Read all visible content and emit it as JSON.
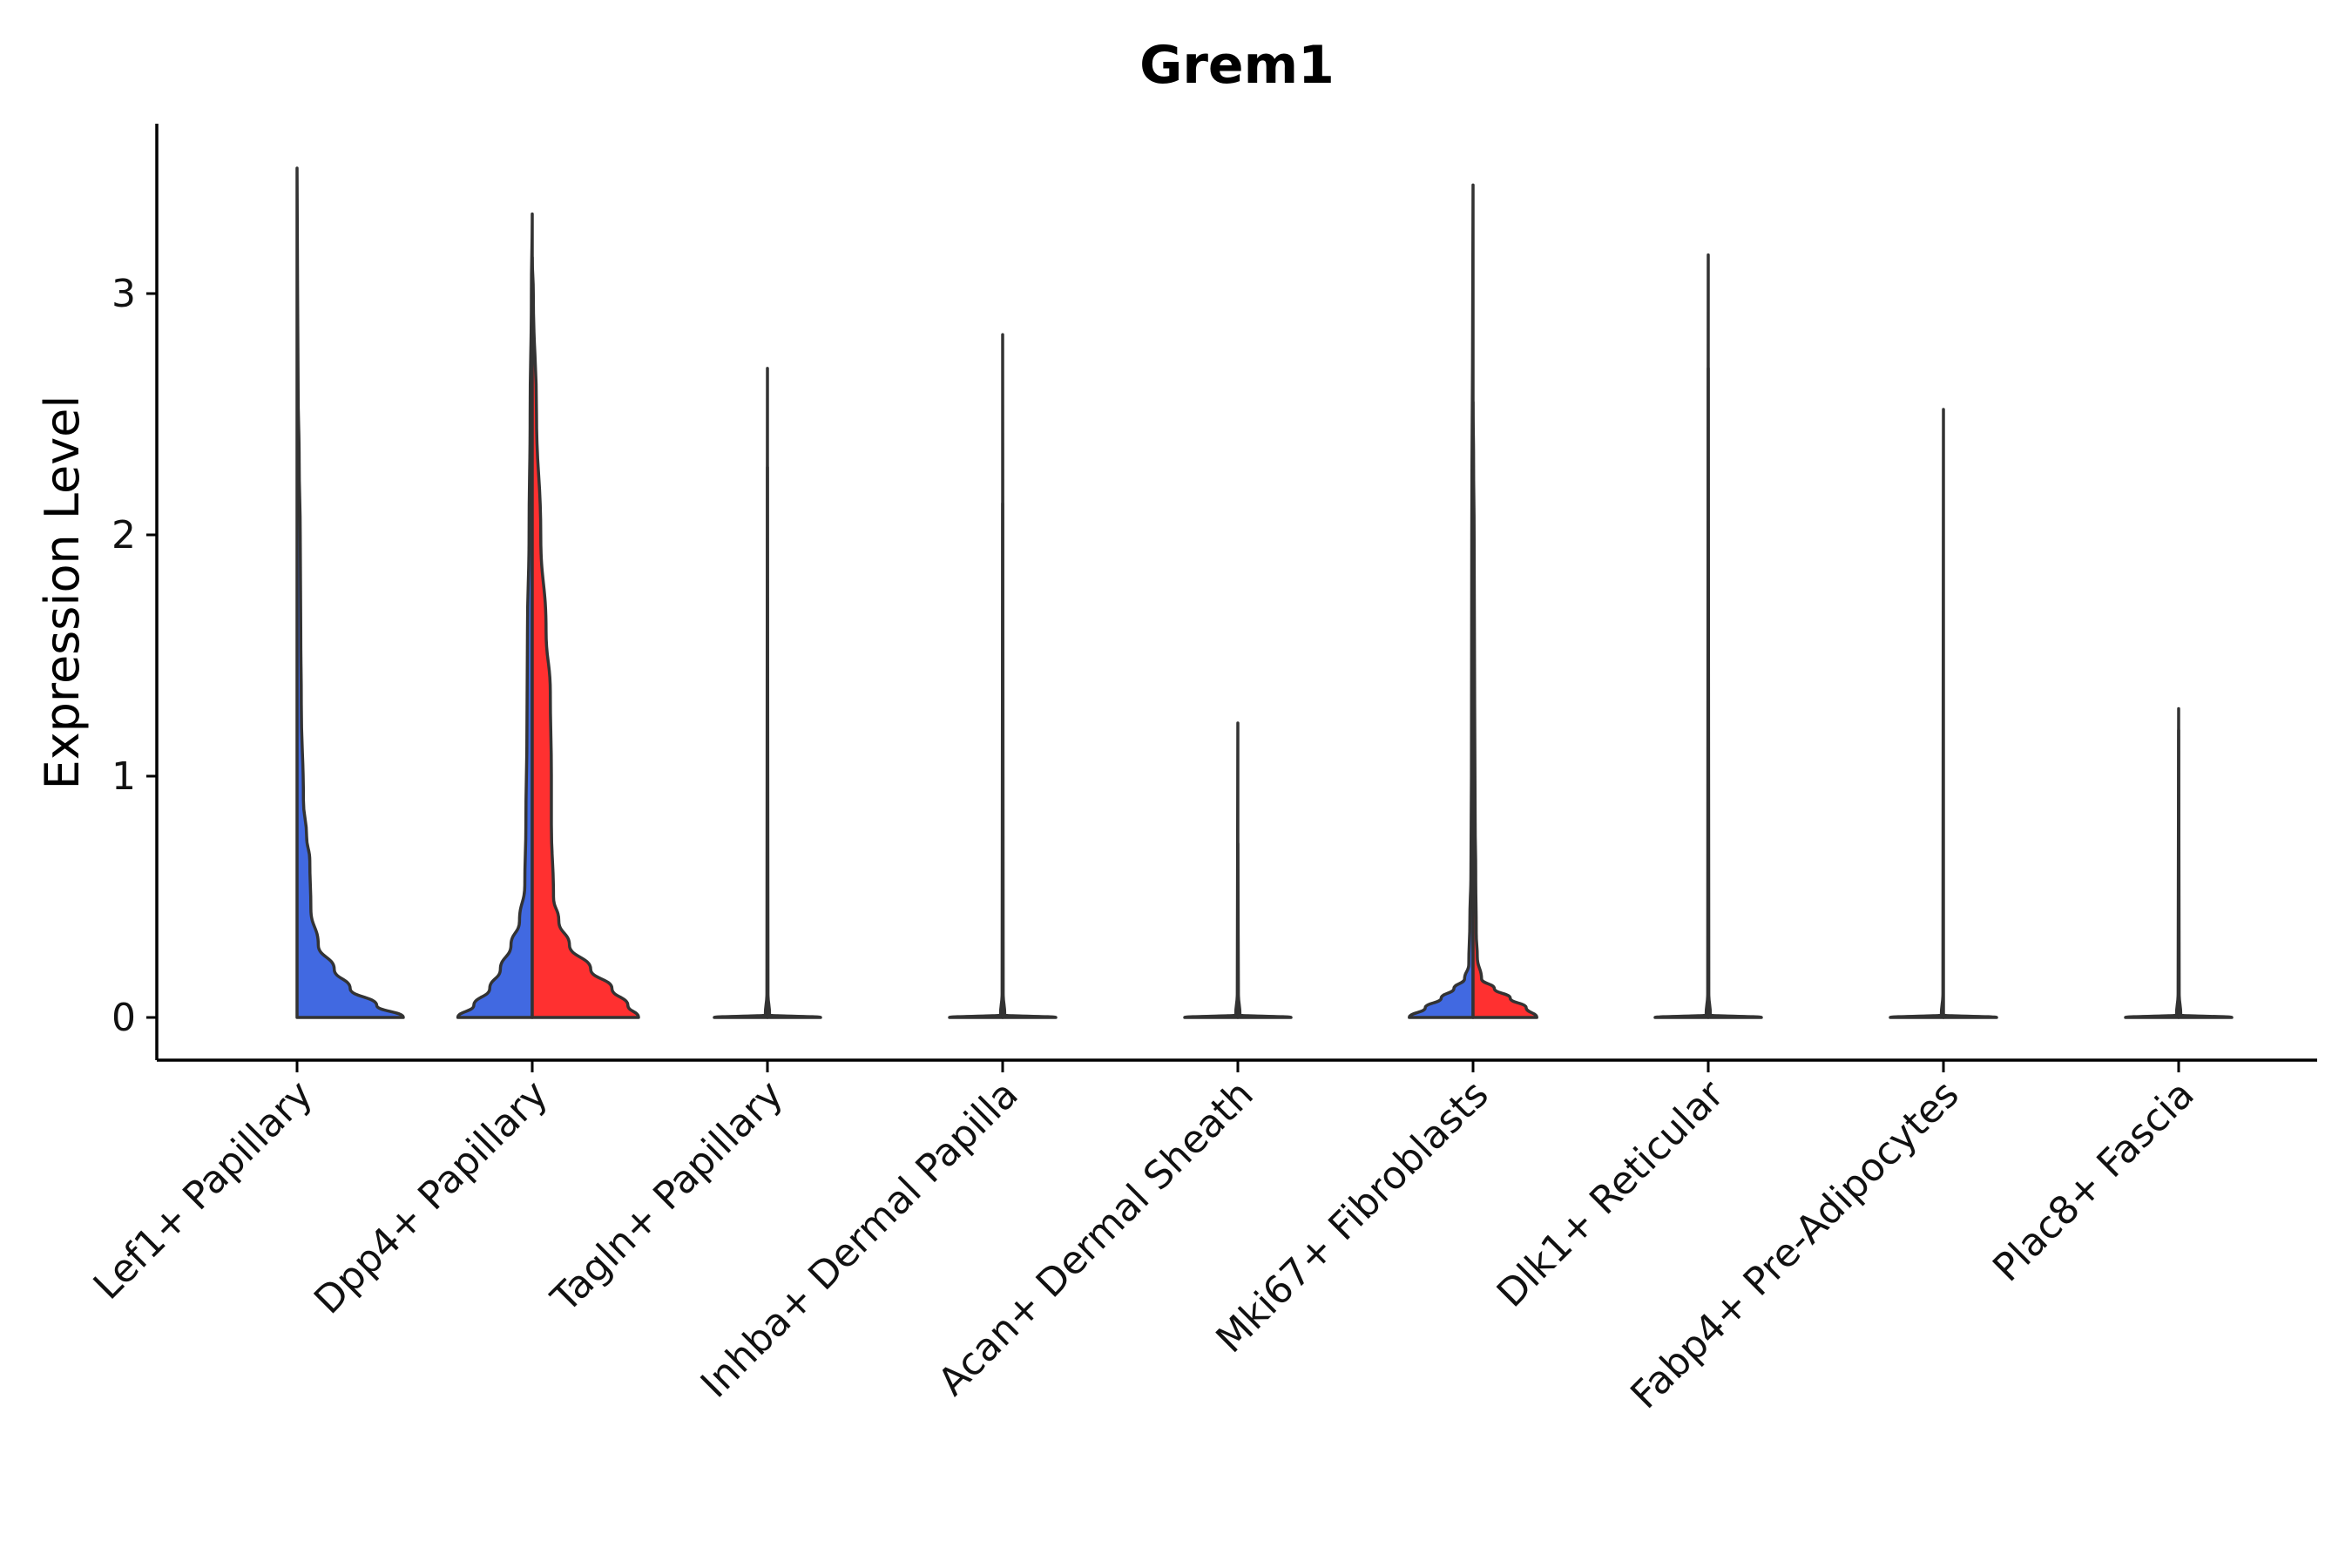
{
  "chart_data": {
    "type": "violin",
    "title": "Grem1",
    "xlabel": "",
    "ylabel": "Expression Level",
    "ylim": [
      -0.18,
      3.7
    ],
    "yticks": [
      "0",
      "1",
      "2",
      "3"
    ],
    "grid": false,
    "legend": "none",
    "colors": {
      "blue": "#4169e1",
      "red": "#ff3030",
      "outline": "#333333"
    },
    "categories": [
      "Lef1+ Papillary",
      "Dpp4+ Papillary",
      "Tagln+ Papillary",
      "Inhba+ Dermal Papilla",
      "Acan+ Dermal Sheath",
      "Mki67+ Fibroblasts",
      "Dlk1+ Reticular",
      "Fabp4+ Pre-Adipocytes",
      "Plac8+ Fascia"
    ],
    "violins": [
      {
        "category": "Lef1+ Papillary",
        "side": "right",
        "color": "blue",
        "max": 3.52,
        "profile": [
          [
            0,
            1.0
          ],
          [
            0.05,
            0.75
          ],
          [
            0.12,
            0.5
          ],
          [
            0.2,
            0.35
          ],
          [
            0.3,
            0.2
          ],
          [
            0.45,
            0.13
          ],
          [
            0.65,
            0.12
          ],
          [
            0.75,
            0.09
          ],
          [
            0.9,
            0.06
          ],
          [
            1.3,
            0.04
          ],
          [
            1.6,
            0.035
          ],
          [
            2.0,
            0.03
          ],
          [
            2.3,
            0.02
          ],
          [
            2.6,
            0.01
          ],
          [
            3.0,
            0.005
          ],
          [
            3.52,
            0
          ]
        ]
      },
      {
        "category": "Dpp4+ Papillary",
        "side": "left",
        "color": "blue",
        "max": 3.33,
        "profile": [
          [
            0,
            0.7
          ],
          [
            0.05,
            0.55
          ],
          [
            0.12,
            0.4
          ],
          [
            0.2,
            0.3
          ],
          [
            0.3,
            0.2
          ],
          [
            0.4,
            0.12
          ],
          [
            0.55,
            0.07
          ],
          [
            0.8,
            0.06
          ],
          [
            1.2,
            0.05
          ],
          [
            1.6,
            0.045
          ],
          [
            2.0,
            0.03
          ],
          [
            2.5,
            0.02
          ],
          [
            3.0,
            0.008
          ],
          [
            3.33,
            0
          ]
        ]
      },
      {
        "category": "Dpp4+ Papillary",
        "side": "right",
        "color": "red",
        "max": 3.15,
        "profile": [
          [
            0,
            1.0
          ],
          [
            0.05,
            0.9
          ],
          [
            0.12,
            0.75
          ],
          [
            0.2,
            0.55
          ],
          [
            0.3,
            0.35
          ],
          [
            0.4,
            0.25
          ],
          [
            0.5,
            0.2
          ],
          [
            0.8,
            0.18
          ],
          [
            1.0,
            0.18
          ],
          [
            1.35,
            0.17
          ],
          [
            1.6,
            0.13
          ],
          [
            2.0,
            0.08
          ],
          [
            2.5,
            0.04
          ],
          [
            3.0,
            0.01
          ],
          [
            3.15,
            0
          ]
        ]
      },
      {
        "category": "Tagln+ Papillary",
        "side": "left",
        "color": "blue",
        "max": 2.69,
        "profile": [
          [
            0,
            0.5
          ],
          [
            0.01,
            0.02
          ],
          [
            0.1,
            0.005
          ],
          [
            2.69,
            0
          ]
        ]
      },
      {
        "category": "Tagln+ Papillary",
        "side": "right",
        "color": "red",
        "max": 2.28,
        "profile": [
          [
            0,
            0.5
          ],
          [
            0.01,
            0.02
          ],
          [
            0.1,
            0.005
          ],
          [
            2.28,
            0
          ]
        ]
      },
      {
        "category": "Inhba+ Dermal Papilla",
        "side": "left",
        "color": "blue",
        "max": 2.13,
        "profile": [
          [
            0,
            0.5
          ],
          [
            0.01,
            0.02
          ],
          [
            0.1,
            0.005
          ],
          [
            2.13,
            0
          ]
        ]
      },
      {
        "category": "Inhba+ Dermal Papilla",
        "side": "right",
        "color": "red",
        "max": 2.83,
        "profile": [
          [
            0,
            0.5
          ],
          [
            0.01,
            0.02
          ],
          [
            0.1,
            0.005
          ],
          [
            2.83,
            0
          ]
        ]
      },
      {
        "category": "Acan+ Dermal Sheath",
        "side": "left",
        "color": "blue",
        "max": 1.22,
        "profile": [
          [
            0,
            0.5
          ],
          [
            0.01,
            0.02
          ],
          [
            0.1,
            0.005
          ],
          [
            1.22,
            0
          ]
        ]
      },
      {
        "category": "Acan+ Dermal Sheath",
        "side": "right",
        "color": "red",
        "max": 0.72,
        "profile": [
          [
            0,
            0.5
          ],
          [
            0.01,
            0.02
          ],
          [
            0.1,
            0.005
          ],
          [
            0.72,
            0
          ]
        ]
      },
      {
        "category": "Mki67+ Fibroblasts",
        "side": "left",
        "color": "blue",
        "max": 3.45,
        "profile": [
          [
            0,
            0.6
          ],
          [
            0.04,
            0.45
          ],
          [
            0.08,
            0.3
          ],
          [
            0.12,
            0.18
          ],
          [
            0.16,
            0.08
          ],
          [
            0.22,
            0.04
          ],
          [
            0.4,
            0.03
          ],
          [
            0.6,
            0.02
          ],
          [
            1.0,
            0.015
          ],
          [
            2.0,
            0.012
          ],
          [
            2.3,
            0.01
          ],
          [
            2.7,
            0.005
          ],
          [
            3.45,
            0
          ]
        ]
      },
      {
        "category": "Mki67+ Fibroblasts",
        "side": "right",
        "color": "red",
        "max": 2.55,
        "profile": [
          [
            0,
            0.6
          ],
          [
            0.04,
            0.5
          ],
          [
            0.08,
            0.35
          ],
          [
            0.12,
            0.2
          ],
          [
            0.16,
            0.08
          ],
          [
            0.25,
            0.04
          ],
          [
            0.35,
            0.03
          ],
          [
            0.6,
            0.025
          ],
          [
            0.8,
            0.02
          ],
          [
            1.3,
            0.015
          ],
          [
            2.0,
            0.01
          ],
          [
            2.3,
            0.005
          ],
          [
            2.55,
            0
          ]
        ]
      },
      {
        "category": "Dlk1+ Reticular",
        "side": "left",
        "color": "blue",
        "max": 3.16,
        "profile": [
          [
            0,
            0.5
          ],
          [
            0.01,
            0.02
          ],
          [
            0.1,
            0.005
          ],
          [
            3.16,
            0
          ]
        ]
      },
      {
        "category": "Dlk1+ Reticular",
        "side": "right",
        "color": "red",
        "max": 2.69,
        "profile": [
          [
            0,
            0.5
          ],
          [
            0.01,
            0.02
          ],
          [
            0.1,
            0.005
          ],
          [
            2.69,
            0
          ]
        ]
      },
      {
        "category": "Fabp4+ Pre-Adipocytes",
        "side": "left",
        "color": "blue",
        "max": 2.52,
        "profile": [
          [
            0,
            0.5
          ],
          [
            0.01,
            0.02
          ],
          [
            0.1,
            0.005
          ],
          [
            2.52,
            0
          ]
        ]
      },
      {
        "category": "Fabp4+ Pre-Adipocytes",
        "side": "right",
        "color": "red",
        "max": 0,
        "profile": [
          [
            0,
            0.5
          ],
          [
            0.01,
            0.0
          ]
        ]
      },
      {
        "category": "Plac8+ Fascia",
        "side": "left",
        "color": "blue",
        "max": 1.28,
        "profile": [
          [
            0,
            0.5
          ],
          [
            0.01,
            0.02
          ],
          [
            0.1,
            0.005
          ],
          [
            1.28,
            0
          ]
        ]
      },
      {
        "category": "Plac8+ Fascia",
        "side": "right",
        "color": "red",
        "max": 1.19,
        "profile": [
          [
            0,
            0.5
          ],
          [
            0.01,
            0.02
          ],
          [
            0.1,
            0.005
          ],
          [
            1.19,
            0
          ]
        ]
      }
    ]
  }
}
